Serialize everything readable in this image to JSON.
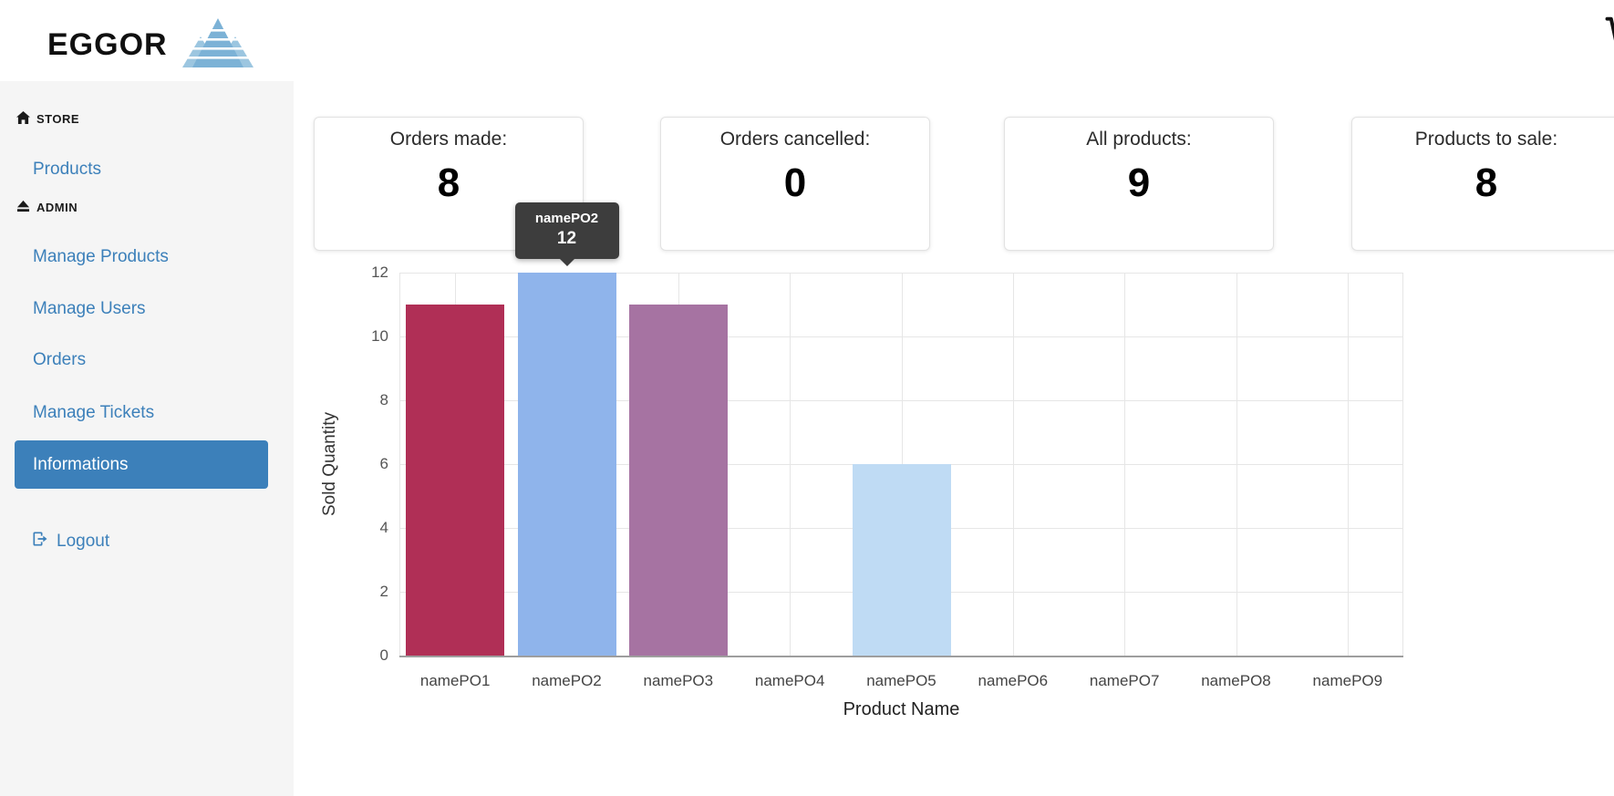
{
  "header": {
    "brand": "EGGOR",
    "logo_icon": "mountain-logo-icon",
    "cart_icon": "shopping-cart-icon"
  },
  "sidebar": {
    "sections": [
      {
        "label": "STORE",
        "icon": "home-icon",
        "items": [
          {
            "label": "Products",
            "active": false
          }
        ]
      },
      {
        "label": "ADMIN",
        "icon": "eject-icon",
        "items": [
          {
            "label": "Manage Products",
            "active": false
          },
          {
            "label": "Manage Users",
            "active": false
          },
          {
            "label": "Orders",
            "active": false
          },
          {
            "label": "Manage Tickets",
            "active": false
          },
          {
            "label": "Informations",
            "active": true
          }
        ]
      }
    ],
    "logout_label": "Logout",
    "logout_icon": "logout-icon"
  },
  "stats": [
    {
      "title": "Orders made:",
      "value": "8"
    },
    {
      "title": "Orders cancelled:",
      "value": "0"
    },
    {
      "title": "All products:",
      "value": "9"
    },
    {
      "title": "Products to sale:",
      "value": "8"
    }
  ],
  "chart_data": {
    "type": "bar",
    "categories": [
      "namePO1",
      "namePO2",
      "namePO3",
      "namePO4",
      "namePO5",
      "namePO6",
      "namePO7",
      "namePO8",
      "namePO9"
    ],
    "values": [
      11,
      12,
      11,
      0,
      6,
      0,
      0,
      0,
      0
    ],
    "colors": [
      "#b02f56",
      "#8fb4eb",
      "#a673a2",
      "#cccccc",
      "#bfdbf4",
      "#cccccc",
      "#cccccc",
      "#cccccc",
      "#cccccc"
    ],
    "xlabel": "Product Name",
    "ylabel": "Sold Quantity",
    "ylim": [
      0,
      12
    ],
    "yticks": [
      0,
      2,
      4,
      6,
      8,
      10,
      12
    ],
    "grid": true,
    "legend": false,
    "tooltip": {
      "index": 1,
      "label": "namePO2",
      "value": "12"
    }
  },
  "colors": {
    "accent": "#3c80ba",
    "sidebar_bg": "#f5f5f5",
    "tooltip_bg": "#3d3d3d",
    "gridline": "#e6e6e6",
    "logo_blue": "#7cb2d6"
  }
}
